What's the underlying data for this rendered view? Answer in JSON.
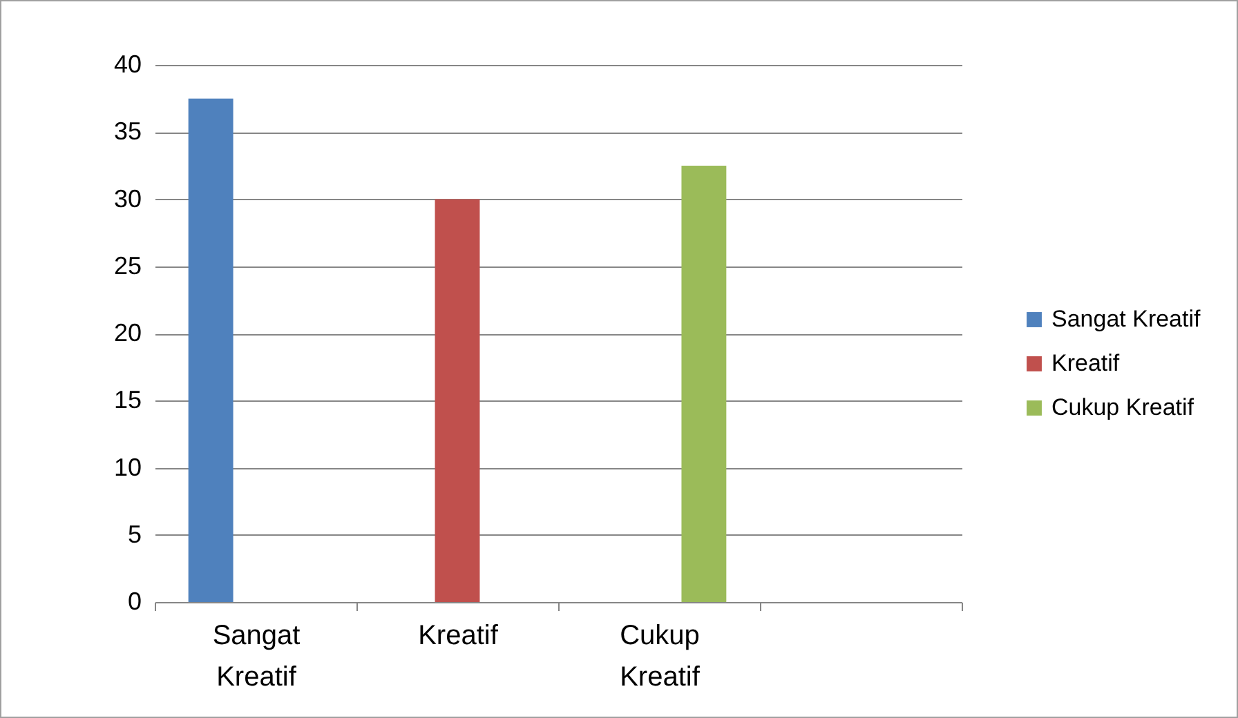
{
  "chart_data": {
    "type": "bar",
    "categories": [
      "Sangat Kreatif",
      "Kreatif",
      "Cukup Kreatif",
      null
    ],
    "series": [
      {
        "name": "Sangat Kreatif",
        "color": "#4f81bd",
        "values": [
          37.5,
          null,
          null,
          null
        ]
      },
      {
        "name": "Kreatif",
        "color": "#c0504d",
        "values": [
          null,
          30,
          null,
          null
        ]
      },
      {
        "name": "Cukup Kreatif",
        "color": "#9bbb59",
        "values": [
          null,
          null,
          32.5,
          null
        ]
      }
    ],
    "ylim": [
      0,
      40
    ],
    "yticks": [
      0,
      5,
      10,
      15,
      20,
      25,
      30,
      35,
      40
    ],
    "grid": "y",
    "legend": "right"
  }
}
